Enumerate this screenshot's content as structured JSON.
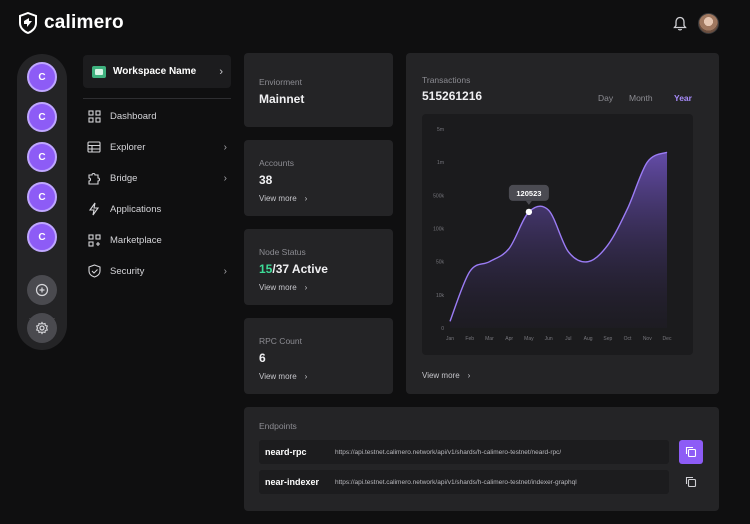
{
  "app": {
    "name": "calimero"
  },
  "rail": {
    "items": [
      {
        "label": "C"
      },
      {
        "label": "C"
      },
      {
        "label": "C"
      },
      {
        "label": "C"
      },
      {
        "label": "C"
      }
    ],
    "add_icon": "plus-circle-icon",
    "settings_icon": "gear-icon"
  },
  "workspace": {
    "name": "Workspace Name"
  },
  "nav": {
    "items": [
      {
        "label": "Dashboard",
        "icon": "grid-icon"
      },
      {
        "label": "Explorer",
        "icon": "server-icon"
      },
      {
        "label": "Bridge",
        "icon": "puzzle-icon"
      },
      {
        "label": "Applications",
        "icon": "lightning-icon"
      },
      {
        "label": "Marketplace",
        "icon": "apps-add-icon"
      },
      {
        "label": "Security",
        "icon": "shield-check-icon"
      }
    ]
  },
  "environment": {
    "label": "Enviorment",
    "value": "Mainnet"
  },
  "accounts": {
    "label": "Accounts",
    "value": "38",
    "link": "View more"
  },
  "node_status": {
    "label": "Node Status",
    "active": "15",
    "rest": "/37 Active",
    "link": "View more"
  },
  "rpc": {
    "label": "RPC Count",
    "value": "6",
    "link": "View more"
  },
  "transactions": {
    "label": "Transactions",
    "value": "515261216",
    "ranges": [
      "Day",
      "Month",
      "Year"
    ],
    "selected_range": "Year",
    "link": "View more",
    "accent": "#a78bfa"
  },
  "chart_data": {
    "type": "area",
    "title": "",
    "xlabel": "",
    "ylabel": "",
    "categories": [
      "Jan",
      "Feb",
      "Mar",
      "Apr",
      "May",
      "Jun",
      "Jul",
      "Aug",
      "Sep",
      "Oct",
      "Nov",
      "Dec"
    ],
    "y_ticks": [
      "0",
      "10k",
      "50k",
      "100k",
      "500k",
      "1m",
      "5m"
    ],
    "series": [
      {
        "values": [
          0.2,
          1.7,
          2.0,
          2.4,
          3.5,
          3.55,
          2.3,
          2.0,
          2.5,
          3.6,
          5.0,
          5.3
        ]
      }
    ],
    "tooltip": {
      "x": "May",
      "value": "120523"
    },
    "grid": false,
    "legend": "none"
  },
  "endpoints": {
    "title": "Endpoints",
    "rows": [
      {
        "name": "neard-rpc",
        "url": "https://api.testnet.calimero.network/api/v1/shards/h-calimero-testnet/neard-rpc/",
        "copy_icon": "copy-icon"
      },
      {
        "name": "near-indexer",
        "url": "https://api.testnet.calimero.network/api/v1/shards/h-calimero-testnet/indexer-graphql",
        "copy_icon": "copy-icon"
      }
    ]
  }
}
